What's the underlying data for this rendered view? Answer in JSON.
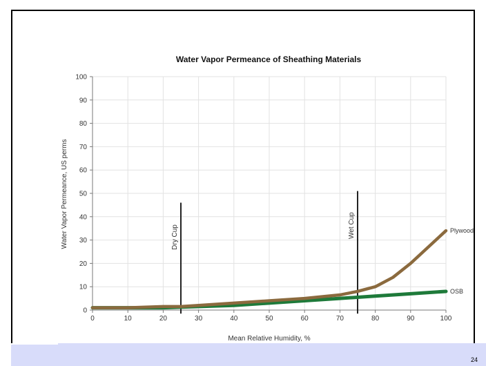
{
  "page": {
    "number": "24"
  },
  "chart_data": {
    "type": "line",
    "title": "Water Vapor Permeance of Sheathing Materials",
    "xlabel": "Mean Relative Humidity, %",
    "ylabel": "Water Vapor Permeance, US perms",
    "xlim": [
      0,
      100
    ],
    "ylim": [
      0,
      100
    ],
    "xticks": [
      0,
      10,
      20,
      30,
      40,
      50,
      60,
      70,
      80,
      90,
      100
    ],
    "yticks": [
      0,
      10,
      20,
      30,
      40,
      50,
      60,
      70,
      80,
      90,
      100
    ],
    "grid": true,
    "series": [
      {
        "name": "Plywood",
        "color": "#8b6a3e",
        "x": [
          0,
          10,
          20,
          25,
          30,
          40,
          50,
          60,
          70,
          75,
          80,
          85,
          90,
          95,
          100
        ],
        "y": [
          1,
          1,
          1.5,
          1.5,
          2,
          3,
          4,
          5,
          6.5,
          8,
          10,
          14,
          20,
          27,
          34
        ]
      },
      {
        "name": "OSB",
        "color": "#1e7a3a",
        "x": [
          0,
          10,
          20,
          30,
          40,
          50,
          60,
          70,
          80,
          90,
          100
        ],
        "y": [
          1,
          1,
          1,
          1.5,
          2,
          3,
          4,
          5,
          6,
          7,
          8
        ]
      }
    ],
    "markers": [
      {
        "label": "Dry Cup",
        "x": 25,
        "y_top": 46
      },
      {
        "label": "Wet Cup",
        "x": 75,
        "y_top": 51
      }
    ]
  }
}
